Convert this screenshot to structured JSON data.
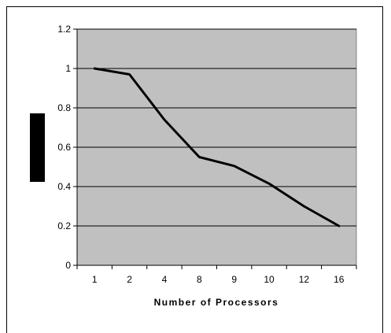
{
  "chart_data": {
    "type": "line",
    "title": "",
    "xlabel": "Number of Processors",
    "ylabel": "",
    "categories": [
      "1",
      "2",
      "4",
      "8",
      "9",
      "10",
      "12",
      "16"
    ],
    "series": [
      {
        "values": [
          1.0,
          0.97,
          0.74,
          0.55,
          0.505,
          0.415,
          0.3,
          0.2
        ]
      }
    ],
    "ylim": [
      0,
      1.2
    ],
    "yticks": [
      "0",
      "0.2",
      "0.4",
      "0.6",
      "0.8",
      "1",
      "1.2"
    ],
    "grid": true,
    "legend": "none",
    "colors": {
      "plot_background": "#c0c0c0",
      "line": "#000000",
      "grid": "#000000",
      "ylabel_block": "#000000"
    }
  }
}
